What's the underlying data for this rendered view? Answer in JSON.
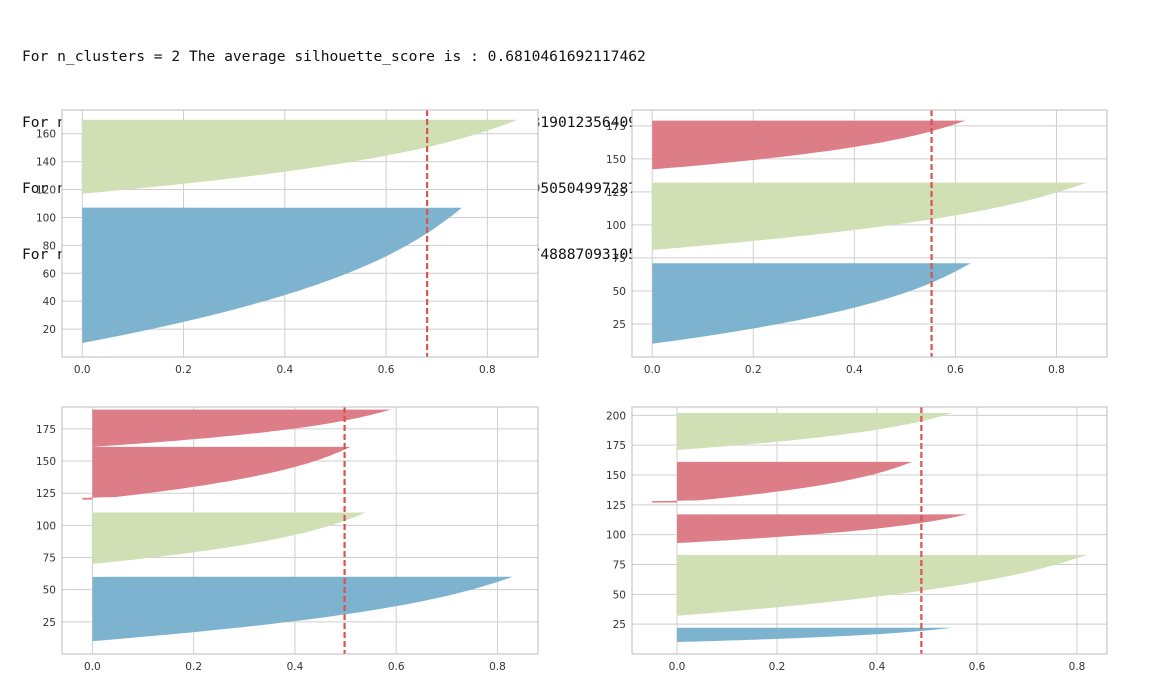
{
  "output": {
    "lines": [
      "For n_clusters = 2 The average silhouette_score is : 0.6810461692117462",
      "For n_clusters = 3 The average silhouette_score is : 0.5528190123564095",
      "For n_clusters = 4 The average silhouette_score is : 0.49805050499728737",
      "For n_clusters = 5 The average silhouette_score is : 0.4887488870931056"
    ]
  },
  "colors": {
    "blue": "#7db3cf",
    "green": "#d0e0b4",
    "red": "#dd7d88",
    "avg_line": "#d9534f",
    "grid": "#cfcfcf",
    "frame": "#bdbdbd"
  },
  "chart_data": [
    {
      "type": "area",
      "n_clusters": 2,
      "average_silhouette_score": 0.6810461692117462,
      "xlim": [
        -0.04,
        0.9
      ],
      "ylim": [
        0,
        177
      ],
      "xticks": [
        0.0,
        0.2,
        0.4,
        0.6,
        0.8
      ],
      "yticks": [
        20,
        40,
        60,
        80,
        100,
        120,
        140,
        160
      ],
      "grid": true,
      "clusters": [
        {
          "color": "blue",
          "y_range": [
            10,
            107
          ],
          "max": 0.75,
          "min": 0.0
        },
        {
          "color": "green",
          "y_range": [
            117,
            170
          ],
          "max": 0.86,
          "min": 0.0
        }
      ]
    },
    {
      "type": "area",
      "n_clusters": 3,
      "average_silhouette_score": 0.5528190123564095,
      "xlim": [
        -0.04,
        0.9
      ],
      "ylim": [
        0,
        187
      ],
      "xticks": [
        0.0,
        0.2,
        0.4,
        0.6,
        0.8
      ],
      "yticks": [
        25,
        50,
        75,
        100,
        125,
        150,
        175
      ],
      "grid": true,
      "clusters": [
        {
          "color": "blue",
          "y_range": [
            10,
            71
          ],
          "max": 0.63,
          "min": 0.0
        },
        {
          "color": "green",
          "y_range": [
            81,
            132
          ],
          "max": 0.86,
          "min": 0.0
        },
        {
          "color": "red",
          "y_range": [
            142,
            179
          ],
          "max": 0.62,
          "min": 0.0
        }
      ]
    },
    {
      "type": "area",
      "n_clusters": 4,
      "average_silhouette_score": 0.49805050499728737,
      "xlim": [
        -0.06,
        0.88
      ],
      "ylim": [
        0,
        192
      ],
      "xticks": [
        0.0,
        0.2,
        0.4,
        0.6,
        0.8
      ],
      "yticks": [
        25,
        50,
        75,
        100,
        125,
        150,
        175
      ],
      "grid": true,
      "clusters": [
        {
          "color": "blue",
          "y_range": [
            10,
            60
          ],
          "max": 0.83,
          "min": 0.0
        },
        {
          "color": "green",
          "y_range": [
            70,
            110
          ],
          "max": 0.54,
          "min": 0.0
        },
        {
          "color": "red",
          "y_range": [
            120,
            161
          ],
          "max": 0.51,
          "min": -0.02
        },
        {
          "color": "red",
          "y_range": [
            161,
            190
          ],
          "max": 0.59,
          "min": 0.0
        }
      ]
    },
    {
      "type": "area",
      "n_clusters": 5,
      "average_silhouette_score": 0.4887488870931056,
      "xlim": [
        -0.09,
        0.86
      ],
      "ylim": [
        0,
        207
      ],
      "xticks": [
        0.0,
        0.2,
        0.4,
        0.6,
        0.8
      ],
      "yticks": [
        25,
        50,
        75,
        100,
        125,
        150,
        175,
        200
      ],
      "grid": true,
      "clusters": [
        {
          "color": "blue",
          "y_range": [
            10,
            22
          ],
          "max": 0.55,
          "min": 0.0
        },
        {
          "color": "green",
          "y_range": [
            32,
            83
          ],
          "max": 0.82,
          "min": 0.0
        },
        {
          "color": "red",
          "y_range": [
            93,
            117
          ],
          "max": 0.58,
          "min": 0.0
        },
        {
          "color": "red",
          "y_range": [
            127,
            161
          ],
          "max": 0.47,
          "min": -0.05
        },
        {
          "color": "green",
          "y_range": [
            171,
            202
          ],
          "max": 0.55,
          "min": 0.0
        }
      ]
    }
  ]
}
